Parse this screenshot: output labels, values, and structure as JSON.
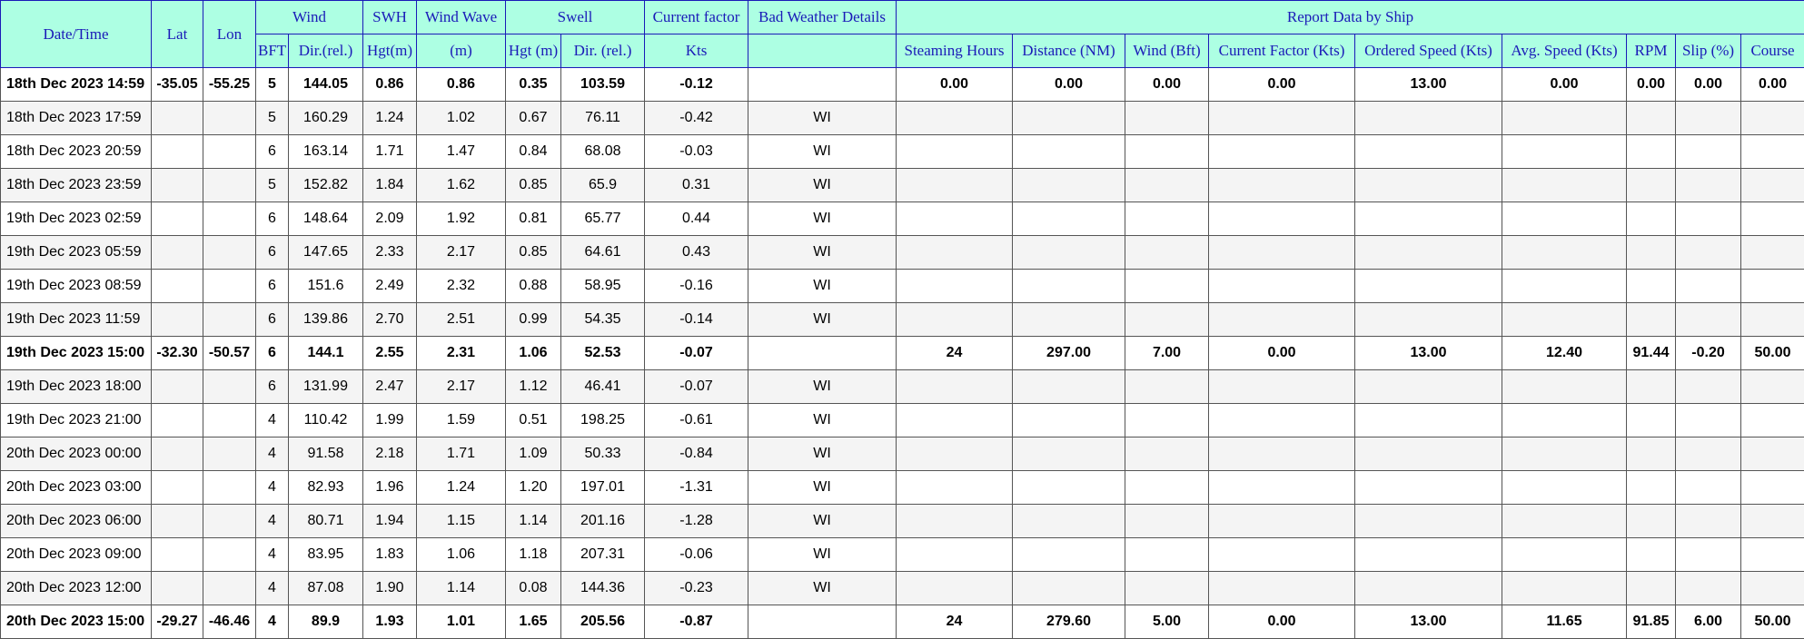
{
  "header": {
    "datetime": "Date/Time",
    "lat": "Lat",
    "lon": "Lon",
    "wind": "Wind",
    "swh": "SWH",
    "wind_wave": "Wind Wave",
    "swell": "Swell",
    "current_factor": "Current factor",
    "bad_weather": "Bad Weather Details",
    "report_data": "Report Data by Ship",
    "bft": "BFT",
    "wind_dir": "Dir.(rel.)",
    "swh_hgt": "Hgt(m)",
    "wind_wave_unit": "(m)",
    "swell_hgt": "Hgt (m)",
    "swell_dir": "Dir. (rel.)",
    "current_unit": "Kts",
    "steaming_hours": "Steaming Hours",
    "distance": "Distance (NM)",
    "wind_bft": "Wind (Bft)",
    "current_factor_kts": "Current Factor (Kts)",
    "ordered_speed": "Ordered Speed (Kts)",
    "avg_speed": "Avg. Speed (Kts)",
    "rpm": "RPM",
    "slip": "Slip (%)",
    "course": "Course"
  },
  "rows": [
    {
      "bold": true,
      "dt": "18th Dec 2023 14:59",
      "lat": "-35.05",
      "lon": "-55.25",
      "bft": "5",
      "wdir": "144.05",
      "swh": "0.86",
      "ww": "0.86",
      "sh": "0.35",
      "sd": "103.59",
      "cf": "-0.12",
      "bw": "",
      "sth": "0.00",
      "dist": "0.00",
      "wb": "0.00",
      "cfk": "0.00",
      "os": "13.00",
      "as": "0.00",
      "rpm": "0.00",
      "slip": "0.00",
      "course": "0.00"
    },
    {
      "bold": false,
      "dt": "18th Dec 2023 17:59",
      "lat": "",
      "lon": "",
      "bft": "5",
      "wdir": "160.29",
      "swh": "1.24",
      "ww": "1.02",
      "sh": "0.67",
      "sd": "76.11",
      "cf": "-0.42",
      "bw": "WI",
      "sth": "",
      "dist": "",
      "wb": "",
      "cfk": "",
      "os": "",
      "as": "",
      "rpm": "",
      "slip": "",
      "course": ""
    },
    {
      "bold": false,
      "dt": "18th Dec 2023 20:59",
      "lat": "",
      "lon": "",
      "bft": "6",
      "wdir": "163.14",
      "swh": "1.71",
      "ww": "1.47",
      "sh": "0.84",
      "sd": "68.08",
      "cf": "-0.03",
      "bw": "WI",
      "sth": "",
      "dist": "",
      "wb": "",
      "cfk": "",
      "os": "",
      "as": "",
      "rpm": "",
      "slip": "",
      "course": ""
    },
    {
      "bold": false,
      "dt": "18th Dec 2023 23:59",
      "lat": "",
      "lon": "",
      "bft": "5",
      "wdir": "152.82",
      "swh": "1.84",
      "ww": "1.62",
      "sh": "0.85",
      "sd": "65.9",
      "cf": "0.31",
      "bw": "WI",
      "sth": "",
      "dist": "",
      "wb": "",
      "cfk": "",
      "os": "",
      "as": "",
      "rpm": "",
      "slip": "",
      "course": ""
    },
    {
      "bold": false,
      "dt": "19th Dec 2023 02:59",
      "lat": "",
      "lon": "",
      "bft": "6",
      "wdir": "148.64",
      "swh": "2.09",
      "ww": "1.92",
      "sh": "0.81",
      "sd": "65.77",
      "cf": "0.44",
      "bw": "WI",
      "sth": "",
      "dist": "",
      "wb": "",
      "cfk": "",
      "os": "",
      "as": "",
      "rpm": "",
      "slip": "",
      "course": ""
    },
    {
      "bold": false,
      "dt": "19th Dec 2023 05:59",
      "lat": "",
      "lon": "",
      "bft": "6",
      "wdir": "147.65",
      "swh": "2.33",
      "ww": "2.17",
      "sh": "0.85",
      "sd": "64.61",
      "cf": "0.43",
      "bw": "WI",
      "sth": "",
      "dist": "",
      "wb": "",
      "cfk": "",
      "os": "",
      "as": "",
      "rpm": "",
      "slip": "",
      "course": ""
    },
    {
      "bold": false,
      "dt": "19th Dec 2023 08:59",
      "lat": "",
      "lon": "",
      "bft": "6",
      "wdir": "151.6",
      "swh": "2.49",
      "ww": "2.32",
      "sh": "0.88",
      "sd": "58.95",
      "cf": "-0.16",
      "bw": "WI",
      "sth": "",
      "dist": "",
      "wb": "",
      "cfk": "",
      "os": "",
      "as": "",
      "rpm": "",
      "slip": "",
      "course": ""
    },
    {
      "bold": false,
      "dt": "19th Dec 2023 11:59",
      "lat": "",
      "lon": "",
      "bft": "6",
      "wdir": "139.86",
      "swh": "2.70",
      "ww": "2.51",
      "sh": "0.99",
      "sd": "54.35",
      "cf": "-0.14",
      "bw": "WI",
      "sth": "",
      "dist": "",
      "wb": "",
      "cfk": "",
      "os": "",
      "as": "",
      "rpm": "",
      "slip": "",
      "course": ""
    },
    {
      "bold": true,
      "dt": "19th Dec 2023 15:00",
      "lat": "-32.30",
      "lon": "-50.57",
      "bft": "6",
      "wdir": "144.1",
      "swh": "2.55",
      "ww": "2.31",
      "sh": "1.06",
      "sd": "52.53",
      "cf": "-0.07",
      "bw": "",
      "sth": "24",
      "dist": "297.00",
      "wb": "7.00",
      "cfk": "0.00",
      "os": "13.00",
      "as": "12.40",
      "rpm": "91.44",
      "slip": "-0.20",
      "course": "50.00"
    },
    {
      "bold": false,
      "dt": "19th Dec 2023 18:00",
      "lat": "",
      "lon": "",
      "bft": "6",
      "wdir": "131.99",
      "swh": "2.47",
      "ww": "2.17",
      "sh": "1.12",
      "sd": "46.41",
      "cf": "-0.07",
      "bw": "WI",
      "sth": "",
      "dist": "",
      "wb": "",
      "cfk": "",
      "os": "",
      "as": "",
      "rpm": "",
      "slip": "",
      "course": ""
    },
    {
      "bold": false,
      "dt": "19th Dec 2023 21:00",
      "lat": "",
      "lon": "",
      "bft": "4",
      "wdir": "110.42",
      "swh": "1.99",
      "ww": "1.59",
      "sh": "0.51",
      "sd": "198.25",
      "cf": "-0.61",
      "bw": "WI",
      "sth": "",
      "dist": "",
      "wb": "",
      "cfk": "",
      "os": "",
      "as": "",
      "rpm": "",
      "slip": "",
      "course": ""
    },
    {
      "bold": false,
      "dt": "20th Dec 2023 00:00",
      "lat": "",
      "lon": "",
      "bft": "4",
      "wdir": "91.58",
      "swh": "2.18",
      "ww": "1.71",
      "sh": "1.09",
      "sd": "50.33",
      "cf": "-0.84",
      "bw": "WI",
      "sth": "",
      "dist": "",
      "wb": "",
      "cfk": "",
      "os": "",
      "as": "",
      "rpm": "",
      "slip": "",
      "course": ""
    },
    {
      "bold": false,
      "dt": "20th Dec 2023 03:00",
      "lat": "",
      "lon": "",
      "bft": "4",
      "wdir": "82.93",
      "swh": "1.96",
      "ww": "1.24",
      "sh": "1.20",
      "sd": "197.01",
      "cf": "-1.31",
      "bw": "WI",
      "sth": "",
      "dist": "",
      "wb": "",
      "cfk": "",
      "os": "",
      "as": "",
      "rpm": "",
      "slip": "",
      "course": ""
    },
    {
      "bold": false,
      "dt": "20th Dec 2023 06:00",
      "lat": "",
      "lon": "",
      "bft": "4",
      "wdir": "80.71",
      "swh": "1.94",
      "ww": "1.15",
      "sh": "1.14",
      "sd": "201.16",
      "cf": "-1.28",
      "bw": "WI",
      "sth": "",
      "dist": "",
      "wb": "",
      "cfk": "",
      "os": "",
      "as": "",
      "rpm": "",
      "slip": "",
      "course": ""
    },
    {
      "bold": false,
      "dt": "20th Dec 2023 09:00",
      "lat": "",
      "lon": "",
      "bft": "4",
      "wdir": "83.95",
      "swh": "1.83",
      "ww": "1.06",
      "sh": "1.18",
      "sd": "207.31",
      "cf": "-0.06",
      "bw": "WI",
      "sth": "",
      "dist": "",
      "wb": "",
      "cfk": "",
      "os": "",
      "as": "",
      "rpm": "",
      "slip": "",
      "course": ""
    },
    {
      "bold": false,
      "dt": "20th Dec 2023 12:00",
      "lat": "",
      "lon": "",
      "bft": "4",
      "wdir": "87.08",
      "swh": "1.90",
      "ww": "1.14",
      "sh": "0.08",
      "sd": "144.36",
      "cf": "-0.23",
      "bw": "WI",
      "sth": "",
      "dist": "",
      "wb": "",
      "cfk": "",
      "os": "",
      "as": "",
      "rpm": "",
      "slip": "",
      "course": ""
    },
    {
      "bold": true,
      "dt": "20th Dec 2023 15:00",
      "lat": "-29.27",
      "lon": "-46.46",
      "bft": "4",
      "wdir": "89.9",
      "swh": "1.93",
      "ww": "1.01",
      "sh": "1.65",
      "sd": "205.56",
      "cf": "-0.87",
      "bw": "",
      "sth": "24",
      "dist": "279.60",
      "wb": "5.00",
      "cfk": "0.00",
      "os": "13.00",
      "as": "11.65",
      "rpm": "91.85",
      "slip": "6.00",
      "course": "50.00"
    }
  ]
}
